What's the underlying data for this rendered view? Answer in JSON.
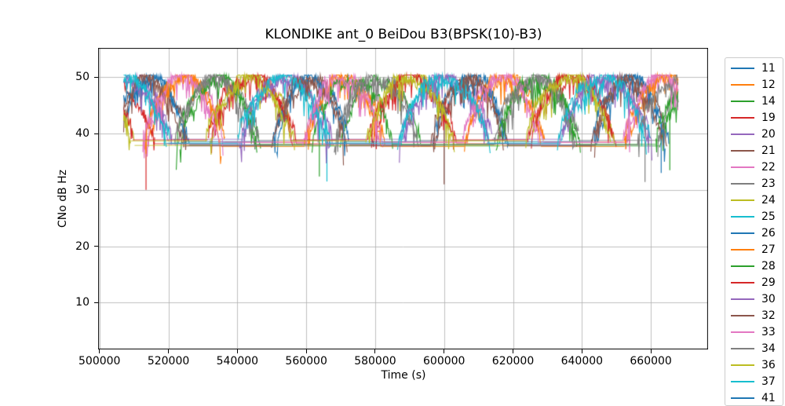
{
  "chart_data": {
    "type": "line",
    "title": "KLONDIKE ant_0 BeiDou B3(BPSK(10)-B3)",
    "xlabel": "Time (s)",
    "ylabel": "CNo dB Hz",
    "xlim": [
      499600,
      676600
    ],
    "ylim": [
      1.7,
      55.2
    ],
    "x_ticks": [
      500000,
      520000,
      540000,
      560000,
      580000,
      600000,
      620000,
      640000,
      660000
    ],
    "y_ticks": [
      10,
      20,
      30,
      40,
      50
    ],
    "grid": true,
    "grid_color": "#b0b0b0",
    "axes_color": "#000000",
    "background_color": "#ffffff",
    "legend_position": "right",
    "data_window": [
      507000,
      668000
    ],
    "cno_ceiling_db": 50.4,
    "noise_band_db": 2.0,
    "series": [
      {
        "label": "11",
        "color": "#1f77b4",
        "edge": 38.0,
        "peak": 49.8,
        "arcs": [
          [
            505000,
            526000
          ],
          [
            551400,
            572400
          ],
          [
            597800,
            618800
          ],
          [
            644200,
            665200
          ]
        ],
        "dips": []
      },
      {
        "label": "12",
        "color": "#ff7f0e",
        "edge": 38.5,
        "peak": 50.0,
        "arcs": [
          [
            514173,
            536373
          ],
          [
            560573,
            582773
          ],
          [
            606973,
            629173
          ],
          [
            653373,
            675573
          ]
        ],
        "dips": []
      },
      {
        "label": "14",
        "color": "#2ca02c",
        "edge": 37.8,
        "peak": 49.6,
        "arcs": [
          [
            523346,
            546746
          ],
          [
            569746,
            593146
          ],
          [
            616146,
            639546
          ],
          [
            662546,
            685946
          ]
        ],
        "dips": []
      },
      {
        "label": "19",
        "color": "#d62728",
        "edge": 38.2,
        "peak": 50.1,
        "arcs": [
          [
            486119,
            516000
          ],
          [
            532519,
            557119
          ],
          [
            578919,
            603519
          ],
          [
            625319,
            649919
          ]
        ],
        "dips": [
          [
            513500,
            30.0
          ]
        ]
      },
      {
        "label": "20",
        "color": "#9467bd",
        "edge": 39.0,
        "peak": 49.9,
        "arcs": [
          [
            495292,
            521092
          ],
          [
            541692,
            567492
          ],
          [
            588092,
            613892
          ],
          [
            634492,
            660292
          ]
        ],
        "dips": []
      },
      {
        "label": "21",
        "color": "#8c564b",
        "edge": 37.9,
        "peak": 49.5,
        "arcs": [
          [
            504465,
            525465
          ],
          [
            550865,
            571865
          ],
          [
            597265,
            618265
          ],
          [
            643665,
            664665
          ]
        ],
        "dips": [
          [
            600000,
            31.0
          ]
        ]
      },
      {
        "label": "22",
        "color": "#e377c2",
        "edge": 38.4,
        "peak": 50.0,
        "arcs": [
          [
            513638,
            535838
          ],
          [
            560038,
            582238
          ],
          [
            606438,
            628638
          ],
          [
            652838,
            675038
          ]
        ],
        "dips": []
      },
      {
        "label": "23",
        "color": "#7f7f7f",
        "edge": 38.8,
        "peak": 49.7,
        "arcs": [
          [
            522811,
            546211
          ],
          [
            569211,
            592611
          ],
          [
            615611,
            639011
          ],
          [
            662011,
            685411
          ]
        ],
        "dips": []
      },
      {
        "label": "24",
        "color": "#bcbd22",
        "edge": 37.9,
        "peak": 50.2,
        "arcs": [
          [
            485584,
            510184
          ],
          [
            531984,
            556584
          ],
          [
            578384,
            602984
          ],
          [
            624784,
            649384
          ]
        ],
        "dips": []
      },
      {
        "label": "25",
        "color": "#17becf",
        "edge": 38.3,
        "peak": 49.6,
        "arcs": [
          [
            494757,
            520557
          ],
          [
            541157,
            566957
          ],
          [
            587557,
            613357
          ],
          [
            633957,
            659757
          ]
        ],
        "dips": [
          [
            566000,
            31.5
          ]
        ]
      },
      {
        "label": "26",
        "color": "#1f77b4",
        "edge": 38.6,
        "peak": 49.9,
        "arcs": [
          [
            503930,
            524930
          ],
          [
            550330,
            571330
          ],
          [
            596730,
            617730
          ],
          [
            643130,
            664130
          ]
        ],
        "dips": [
          [
            663000,
            33.0
          ]
        ]
      },
      {
        "label": "27",
        "color": "#ff7f0e",
        "edge": 37.7,
        "peak": 50.1,
        "arcs": [
          [
            513103,
            535303
          ],
          [
            559503,
            581703
          ],
          [
            605903,
            628103
          ],
          [
            652303,
            674503
          ]
        ],
        "dips": []
      },
      {
        "label": "28",
        "color": "#2ca02c",
        "edge": 38.1,
        "peak": 49.5,
        "arcs": [
          [
            522276,
            545676
          ],
          [
            561676,
            585076
          ],
          [
            615076,
            638476
          ],
          [
            661476,
            684876
          ]
        ],
        "dips": [
          [
            563800,
            32.4
          ],
          [
            665500,
            33.5
          ]
        ]
      },
      {
        "label": "29",
        "color": "#d62728",
        "edge": 38.9,
        "peak": 50.0,
        "arcs": [
          [
            485049,
            509649
          ],
          [
            531449,
            556049
          ],
          [
            577849,
            602449
          ],
          [
            624249,
            648849
          ]
        ],
        "dips": []
      },
      {
        "label": "30",
        "color": "#9467bd",
        "edge": 38.2,
        "peak": 49.8,
        "arcs": [
          [
            494222,
            520022
          ],
          [
            540622,
            566422
          ],
          [
            587022,
            612822
          ],
          [
            633422,
            659222
          ]
        ],
        "dips": []
      },
      {
        "label": "32",
        "color": "#8c564b",
        "edge": 37.8,
        "peak": 49.6,
        "arcs": [
          [
            503395,
            524395
          ],
          [
            549795,
            570795
          ],
          [
            596195,
            617195
          ],
          [
            642595,
            663595
          ]
        ],
        "dips": []
      },
      {
        "label": "33",
        "color": "#e377c2",
        "edge": 38.5,
        "peak": 50.1,
        "arcs": [
          [
            512568,
            534768
          ],
          [
            558968,
            581168
          ],
          [
            605368,
            627568
          ],
          [
            651768,
            673968
          ]
        ],
        "dips": []
      },
      {
        "label": "34",
        "color": "#7f7f7f",
        "edge": 38.0,
        "peak": 49.7,
        "arcs": [
          [
            521741,
            545141
          ],
          [
            568141,
            591541
          ],
          [
            614541,
            637941
          ],
          [
            655941,
            679341
          ]
        ],
        "dips": [
          [
            658300,
            31.4
          ]
        ]
      },
      {
        "label": "36",
        "color": "#bcbd22",
        "edge": 38.7,
        "peak": 49.9,
        "arcs": [
          [
            484514,
            509114
          ],
          [
            530914,
            555514
          ],
          [
            577314,
            601914
          ],
          [
            623714,
            648314
          ]
        ],
        "dips": []
      },
      {
        "label": "37",
        "color": "#17becf",
        "edge": 38.3,
        "peak": 50.0,
        "arcs": [
          [
            493687,
            519487
          ],
          [
            540087,
            565887
          ],
          [
            586487,
            612287
          ],
          [
            632887,
            658687
          ]
        ],
        "dips": []
      }
    ],
    "legend_overflow": {
      "label": "41",
      "color": "#1f77b4"
    }
  }
}
